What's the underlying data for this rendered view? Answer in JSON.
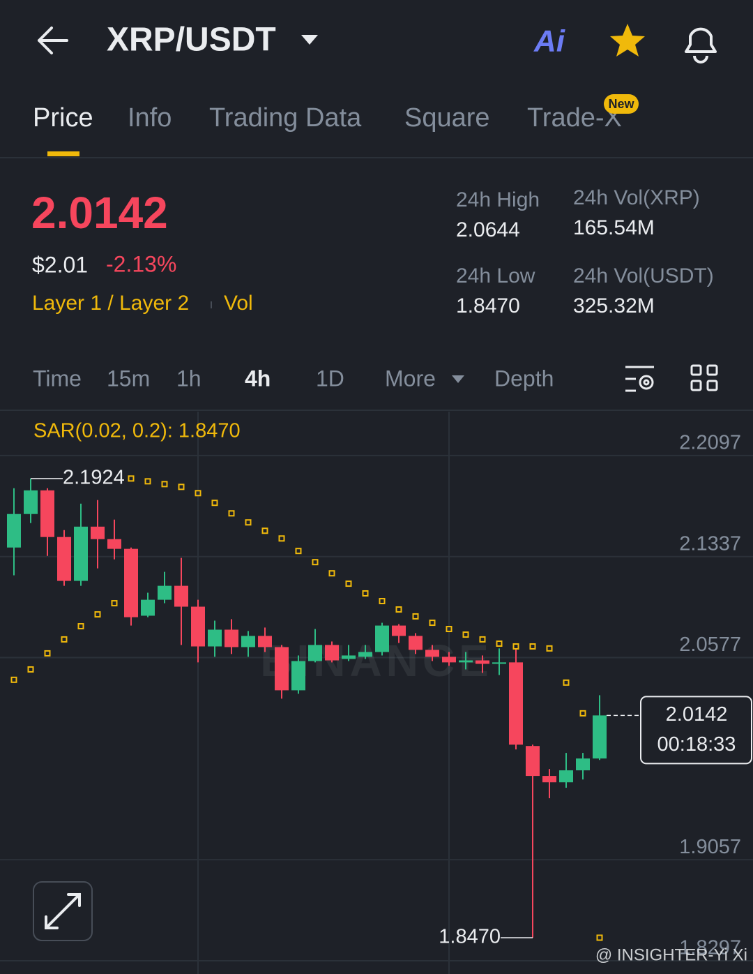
{
  "header": {
    "title": "XRP/USDT",
    "ai_label": "Ai"
  },
  "tabs": {
    "items": [
      "Price",
      "Info",
      "Trading Data",
      "Square",
      "Trade-X"
    ],
    "badge": "New"
  },
  "ticker": {
    "price": "2.0142",
    "usd_price": "$2.01",
    "change": "-2.13%",
    "tags": [
      "Layer 1 / Layer 2",
      "Vol"
    ],
    "stats": [
      {
        "label": "24h High",
        "value": "2.0644"
      },
      {
        "label": "24h Vol(XRP)",
        "value": "165.54M"
      },
      {
        "label": "24h Low",
        "value": "1.8470"
      },
      {
        "label": "24h Vol(USDT)",
        "value": "325.32M"
      }
    ]
  },
  "intervals": [
    "Time",
    "15m",
    "1h",
    "4h",
    "1D",
    "More",
    "Depth"
  ],
  "chart_data": {
    "type": "candlestick",
    "indicator": "SAR(0.02, 0.2): 1.8470",
    "up_color": "#2ebd85",
    "down_color": "#f6465d",
    "sar_color": "#f0b90b",
    "open": [
      2.1405,
      2.1657,
      2.1835,
      2.1484,
      2.1154,
      2.1562,
      2.1468,
      2.1395,
      2.0892,
      2.1012,
      2.1117,
      2.096,
      2.0661,
      2.0787,
      2.0656,
      2.074,
      2.0656,
      2.0331,
      2.0551,
      2.0672,
      2.0567,
      2.0583,
      2.0619,
      2.0818,
      2.074,
      2.0635,
      2.0583,
      2.0541,
      2.0556,
      2.053,
      2.0541,
      1.9912,
      1.9687,
      1.9639,
      1.9729,
      1.9818
    ],
    "high": [
      2.1851,
      2.1924,
      2.1851,
      2.1536,
      2.1735,
      2.1762,
      2.1615,
      2.1405,
      2.1065,
      2.1222,
      2.1327,
      2.1012,
      2.0855,
      2.0866,
      2.0777,
      2.0803,
      2.0672,
      2.0593,
      2.0792,
      2.0698,
      2.0672,
      2.0672,
      2.0839,
      2.0829,
      2.0761,
      2.0672,
      2.0619,
      2.0619,
      2.0593,
      2.0646,
      2.0646,
      1.9922,
      1.9739,
      1.986,
      1.986,
      2.0294
    ],
    "low": [
      2.1196,
      2.1589,
      2.1342,
      2.1117,
      2.1117,
      2.1248,
      2.1316,
      2.0818,
      2.0881,
      2.0986,
      2.0672,
      2.0541,
      2.0583,
      2.0604,
      2.0583,
      2.0619,
      2.0268,
      2.0305,
      2.0541,
      2.0541,
      2.0551,
      2.0567,
      2.0593,
      2.0687,
      2.0604,
      2.0551,
      2.0515,
      2.0488,
      2.0462,
      2.0446,
      1.9886,
      1.847,
      1.9519,
      1.9598,
      1.966,
      1.9807
    ],
    "close": [
      2.1657,
      2.1835,
      2.1484,
      2.1154,
      2.1562,
      2.1468,
      2.1395,
      2.0881,
      2.1012,
      2.1117,
      2.096,
      2.0661,
      2.0787,
      2.0656,
      2.074,
      2.0656,
      2.0331,
      2.0551,
      2.0672,
      2.0556,
      2.0593,
      2.0619,
      2.0818,
      2.074,
      2.0635,
      2.0583,
      2.0541,
      2.0556,
      2.053,
      2.0541,
      1.9922,
      1.9687,
      1.9639,
      1.9729,
      1.9818,
      2.0142
    ],
    "sar": [
      2.041,
      2.0488,
      2.0609,
      2.0714,
      2.0813,
      2.0902,
      2.0986,
      2.1924,
      2.1903,
      2.1882,
      2.1861,
      2.1814,
      2.1741,
      2.1662,
      2.1594,
      2.1531,
      2.1473,
      2.1379,
      2.1295,
      2.1211,
      2.1133,
      2.106,
      2.1002,
      2.0939,
      2.0887,
      2.0839,
      2.0792,
      2.075,
      2.0714,
      2.0682,
      2.0661,
      2.0661,
      2.0646,
      2.0389,
      2.0158,
      1.847
    ],
    "ylim": [
      1.8197,
      2.2427
    ],
    "yticks": [
      2.2097,
      2.1337,
      2.0577,
      1.9057,
      1.8297
    ],
    "grid": true,
    "high_label": "2.1924",
    "low_label": "1.8470",
    "last_price": "2.0142",
    "countdown": "00:18:33",
    "watermark": "BINANCE"
  },
  "credit": "@ INSIGHTER-Yi Xi"
}
